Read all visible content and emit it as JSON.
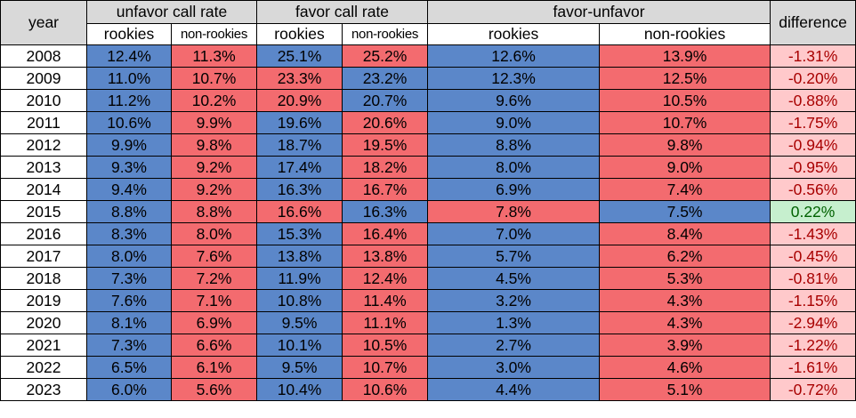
{
  "chart_data": {
    "type": "table",
    "headers": {
      "year": "year",
      "groups": [
        "unfavor call rate",
        "favor call rate",
        "favor-unfavor"
      ],
      "difference": "difference",
      "sub": [
        "rookies",
        "non-rookies"
      ]
    },
    "colors": {
      "blue": "#5b87c9",
      "red": "#f36b6f",
      "header_gray": "#d9d9d9",
      "neg_fill": "#ffc9cb",
      "neg_text": "#a80000",
      "pos_fill": "#c6efce",
      "pos_text": "#006100"
    },
    "rows": [
      {
        "year": "2008",
        "unf_r": "12.4%",
        "unf_n": "11.3%",
        "fav_r": "25.1%",
        "fav_n": "25.2%",
        "fu_r": "12.6%",
        "fu_n": "13.9%",
        "diff": "-1.31%"
      },
      {
        "year": "2009",
        "unf_r": "11.0%",
        "unf_n": "10.7%",
        "fav_r": "23.3%",
        "fav_n": "23.2%",
        "fu_r": "12.3%",
        "fu_n": "12.5%",
        "diff": "-0.20%"
      },
      {
        "year": "2010",
        "unf_r": "11.2%",
        "unf_n": "10.2%",
        "fav_r": "20.9%",
        "fav_n": "20.7%",
        "fu_r": "9.6%",
        "fu_n": "10.5%",
        "diff": "-0.88%"
      },
      {
        "year": "2011",
        "unf_r": "10.6%",
        "unf_n": "9.9%",
        "fav_r": "19.6%",
        "fav_n": "20.6%",
        "fu_r": "9.0%",
        "fu_n": "10.7%",
        "diff": "-1.75%"
      },
      {
        "year": "2012",
        "unf_r": "9.9%",
        "unf_n": "9.8%",
        "fav_r": "18.7%",
        "fav_n": "19.5%",
        "fu_r": "8.8%",
        "fu_n": "9.8%",
        "diff": "-0.94%"
      },
      {
        "year": "2013",
        "unf_r": "9.3%",
        "unf_n": "9.2%",
        "fav_r": "17.4%",
        "fav_n": "18.2%",
        "fu_r": "8.0%",
        "fu_n": "9.0%",
        "diff": "-0.95%"
      },
      {
        "year": "2014",
        "unf_r": "9.4%",
        "unf_n": "9.2%",
        "fav_r": "16.3%",
        "fav_n": "16.7%",
        "fu_r": "6.9%",
        "fu_n": "7.4%",
        "diff": "-0.56%"
      },
      {
        "year": "2015",
        "unf_r": "8.8%",
        "unf_n": "8.8%",
        "fav_r": "16.6%",
        "fav_n": "16.3%",
        "fu_r": "7.8%",
        "fu_n": "7.5%",
        "diff": "0.22%"
      },
      {
        "year": "2016",
        "unf_r": "8.3%",
        "unf_n": "8.0%",
        "fav_r": "15.3%",
        "fav_n": "16.4%",
        "fu_r": "7.0%",
        "fu_n": "8.4%",
        "diff": "-1.43%"
      },
      {
        "year": "2017",
        "unf_r": "8.0%",
        "unf_n": "7.6%",
        "fav_r": "13.8%",
        "fav_n": "13.8%",
        "fu_r": "5.7%",
        "fu_n": "6.2%",
        "diff": "-0.45%"
      },
      {
        "year": "2018",
        "unf_r": "7.3%",
        "unf_n": "7.2%",
        "fav_r": "11.9%",
        "fav_n": "12.4%",
        "fu_r": "4.5%",
        "fu_n": "5.3%",
        "diff": "-0.81%"
      },
      {
        "year": "2019",
        "unf_r": "7.6%",
        "unf_n": "7.1%",
        "fav_r": "10.8%",
        "fav_n": "11.4%",
        "fu_r": "3.2%",
        "fu_n": "4.3%",
        "diff": "-1.15%"
      },
      {
        "year": "2020",
        "unf_r": "8.1%",
        "unf_n": "6.9%",
        "fav_r": "9.5%",
        "fav_n": "11.1%",
        "fu_r": "1.3%",
        "fu_n": "4.3%",
        "diff": "-2.94%"
      },
      {
        "year": "2021",
        "unf_r": "7.3%",
        "unf_n": "6.6%",
        "fav_r": "10.1%",
        "fav_n": "10.5%",
        "fu_r": "2.7%",
        "fu_n": "3.9%",
        "diff": "-1.22%"
      },
      {
        "year": "2022",
        "unf_r": "6.5%",
        "unf_n": "6.1%",
        "fav_r": "9.5%",
        "fav_n": "10.7%",
        "fu_r": "3.0%",
        "fu_n": "4.6%",
        "diff": "-1.61%"
      },
      {
        "year": "2023",
        "unf_r": "6.0%",
        "unf_n": "5.6%",
        "fav_r": "10.4%",
        "fav_n": "10.6%",
        "fu_r": "4.4%",
        "fu_n": "5.1%",
        "diff": "-0.72%"
      }
    ]
  }
}
